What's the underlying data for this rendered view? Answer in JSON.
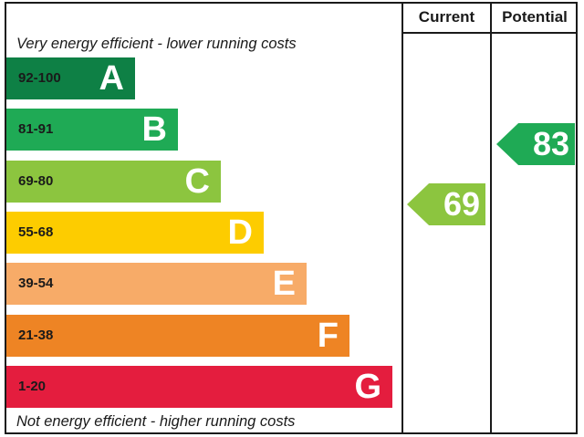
{
  "chart_data": {
    "type": "bar",
    "columns": {
      "current": "Current",
      "potential": "Potential"
    },
    "top_caption": "Very energy efficient - lower running costs",
    "bottom_caption": "Not energy efficient - higher running costs",
    "bands": [
      {
        "letter": "A",
        "range": "92-100",
        "min": 92,
        "color": "#0e8045"
      },
      {
        "letter": "B",
        "range": "81-91",
        "min": 81,
        "color": "#1faa55"
      },
      {
        "letter": "C",
        "range": "69-80",
        "min": 69,
        "color": "#8cc53f"
      },
      {
        "letter": "D",
        "range": "55-68",
        "min": 55,
        "color": "#fdcc00"
      },
      {
        "letter": "E",
        "range": "39-54",
        "min": 39,
        "color": "#f7ab68"
      },
      {
        "letter": "F",
        "range": "21-38",
        "min": 21,
        "color": "#ee8424"
      },
      {
        "letter": "G",
        "range": "1-20",
        "min": 1,
        "color": "#e41d3e"
      }
    ],
    "current": {
      "value": 69,
      "band": "C",
      "color": "#8cc53f"
    },
    "potential": {
      "value": 83,
      "band": "B",
      "color": "#1faa55"
    }
  }
}
